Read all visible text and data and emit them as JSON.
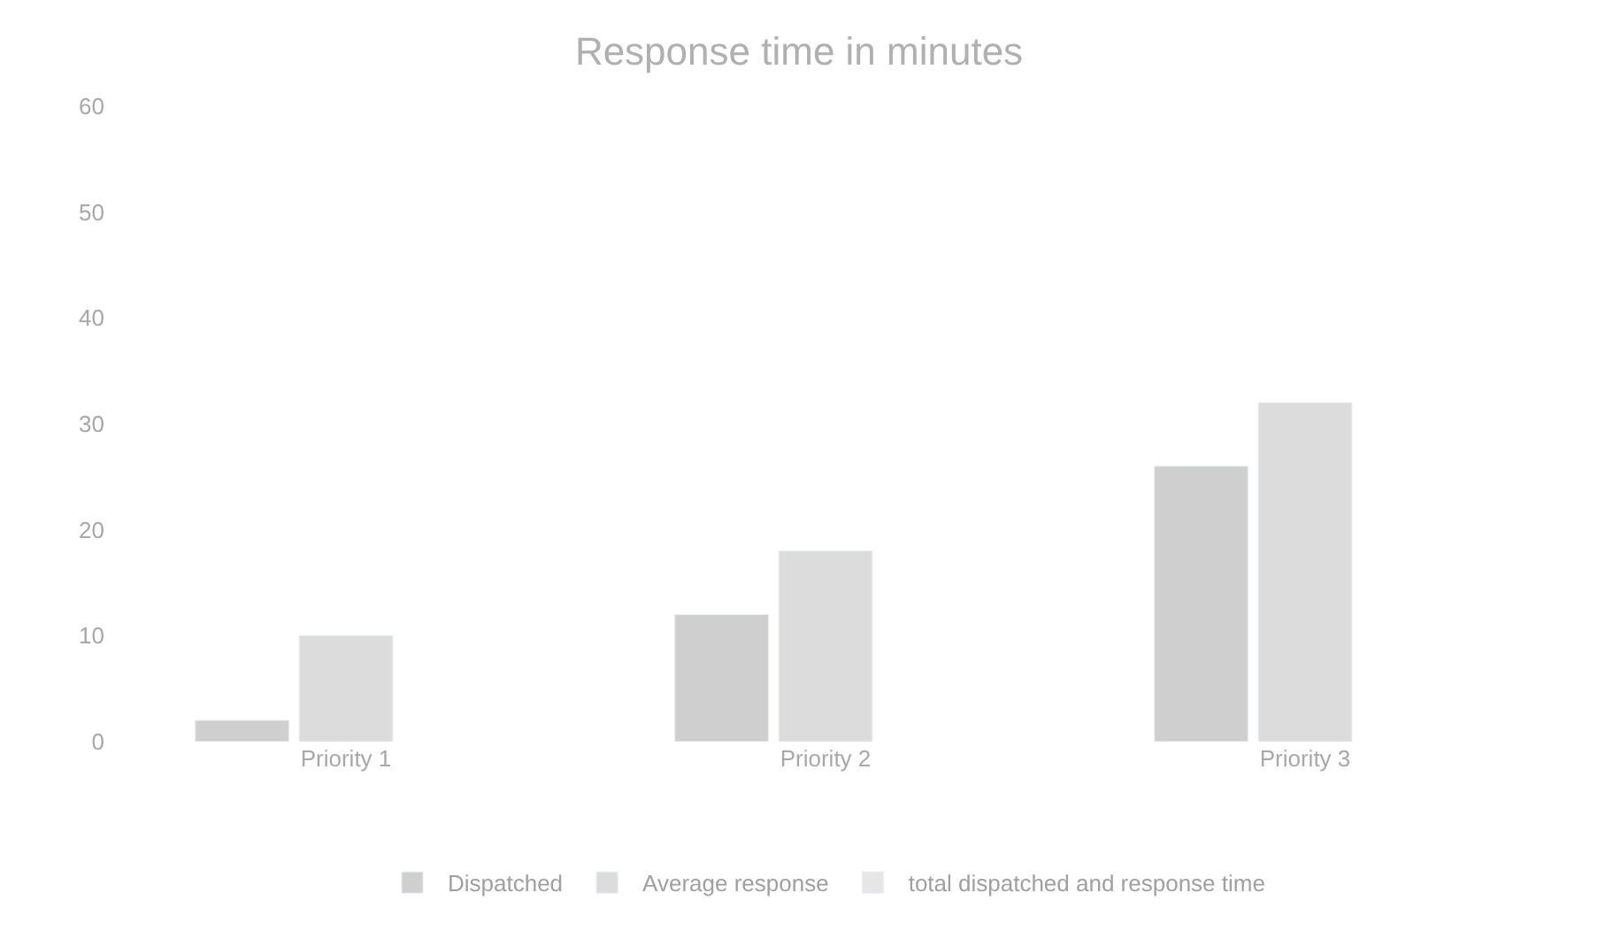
{
  "chart_data": {
    "type": "bar",
    "title": "Response time in minutes",
    "categories": [
      "Priority 1",
      "Priority 2",
      "Priority 3"
    ],
    "series": [
      {
        "name": "Dispatched",
        "color": "#cfcfcf",
        "values": [
          2,
          12,
          26
        ]
      },
      {
        "name": "Average response",
        "color": "#dcdcdc",
        "values": [
          10,
          18,
          32
        ]
      },
      {
        "name": "total dispatched and response time",
        "color": "#e6e6e6",
        "values": [
          null,
          null,
          null
        ]
      }
    ],
    "ylim": [
      0,
      60
    ],
    "yticks": [
      0,
      10,
      20,
      30,
      40,
      50,
      60
    ],
    "grid": false,
    "legend": "bottom"
  }
}
